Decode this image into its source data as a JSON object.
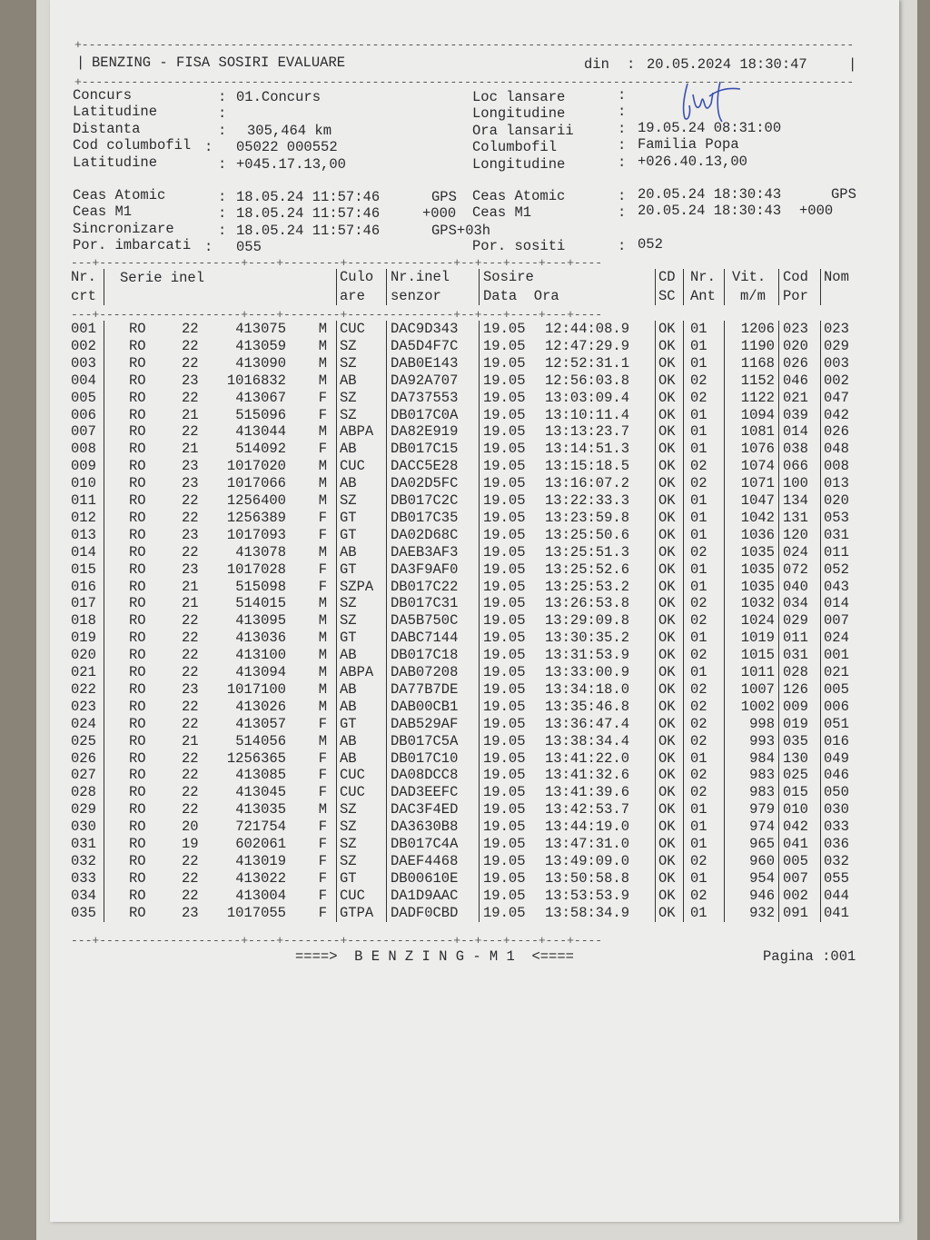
{
  "header": {
    "title": "BENZING - FISA SOSIRI EVALUARE",
    "date_label": "din",
    "date": "20.05.2024 18:30:47"
  },
  "info_left": [
    {
      "label": "Concurs",
      "value": "01.Concurs"
    },
    {
      "label": "Latitudine",
      "value": ""
    },
    {
      "label": "Distanta",
      "value": "305,464 km"
    },
    {
      "label": "Cod columbofil",
      "value": "05022 000552"
    },
    {
      "label": "Latitudine",
      "value": "+045.17.13,00"
    }
  ],
  "info_right": [
    {
      "label": "Loc lansare",
      "value": ""
    },
    {
      "label": "Longitudine",
      "value": ""
    },
    {
      "label": "Ora lansarii",
      "value": "19.05.24 08:31:00"
    },
    {
      "label": "Columbofil",
      "value": "Familia Popa"
    },
    {
      "label": "Longitudine",
      "value": "+026.40.13,00"
    }
  ],
  "clock_left": [
    {
      "label": "Ceas Atomic",
      "value": "18.05.24 11:57:46",
      "suffix": "GPS"
    },
    {
      "label": "Ceas M1",
      "value": "18.05.24 11:57:46",
      "suffix": "+000"
    },
    {
      "label": "Sincronizare",
      "value": "18.05.24 11:57:46",
      "suffix": "GPS+03h"
    },
    {
      "label": "Por. imbarcati",
      "value": "055",
      "suffix": ""
    }
  ],
  "clock_right": [
    {
      "label": "Ceas Atomic",
      "value": "20.05.24 18:30:43",
      "suffix": "GPS"
    },
    {
      "label": "Ceas M1",
      "value": "20.05.24 18:30:43",
      "suffix": "+000"
    },
    {
      "label": "Por. sositi",
      "value": "052",
      "suffix": ""
    }
  ],
  "table": {
    "headers": {
      "nr": [
        "Nr.",
        "crt"
      ],
      "serie": "Serie inel",
      "culoare": [
        "Culo",
        "are"
      ],
      "senzor": [
        "Nr.inel",
        "senzor"
      ],
      "sosire": [
        "Sosire",
        "Data  Ora"
      ],
      "cdsc": [
        "CD",
        "SC"
      ],
      "ant": [
        "Nr.",
        "Ant"
      ],
      "vit": [
        "Vit.",
        "m/m"
      ],
      "cod": [
        "Cod",
        "Por"
      ],
      "nom": [
        "Nom",
        ""
      ]
    },
    "rows": [
      [
        "001",
        "RO",
        "22",
        "413075",
        "M",
        "CUC",
        "DAC9D343",
        "19.05",
        "12:44:08.9",
        "OK",
        "01",
        "1206",
        "023",
        "023"
      ],
      [
        "002",
        "RO",
        "22",
        "413059",
        "M",
        "SZ",
        "DA5D4F7C",
        "19.05",
        "12:47:29.9",
        "OK",
        "01",
        "1190",
        "020",
        "029"
      ],
      [
        "003",
        "RO",
        "22",
        "413090",
        "M",
        "SZ",
        "DAB0E143",
        "19.05",
        "12:52:31.1",
        "OK",
        "01",
        "1168",
        "026",
        "003"
      ],
      [
        "004",
        "RO",
        "23",
        "1016832",
        "M",
        "AB",
        "DA92A707",
        "19.05",
        "12:56:03.8",
        "OK",
        "02",
        "1152",
        "046",
        "002"
      ],
      [
        "005",
        "RO",
        "22",
        "413067",
        "F",
        "SZ",
        "DA737553",
        "19.05",
        "13:03:09.4",
        "OK",
        "02",
        "1122",
        "021",
        "047"
      ],
      [
        "006",
        "RO",
        "21",
        "515096",
        "F",
        "SZ",
        "DB017C0A",
        "19.05",
        "13:10:11.4",
        "OK",
        "01",
        "1094",
        "039",
        "042"
      ],
      [
        "007",
        "RO",
        "22",
        "413044",
        "M",
        "ABPA",
        "DA82E919",
        "19.05",
        "13:13:23.7",
        "OK",
        "01",
        "1081",
        "014",
        "026"
      ],
      [
        "008",
        "RO",
        "21",
        "514092",
        "F",
        "AB",
        "DB017C15",
        "19.05",
        "13:14:51.3",
        "OK",
        "01",
        "1076",
        "038",
        "048"
      ],
      [
        "009",
        "RO",
        "23",
        "1017020",
        "M",
        "CUC",
        "DACC5E28",
        "19.05",
        "13:15:18.5",
        "OK",
        "02",
        "1074",
        "066",
        "008"
      ],
      [
        "010",
        "RO",
        "23",
        "1017066",
        "M",
        "AB",
        "DA02D5FC",
        "19.05",
        "13:16:07.2",
        "OK",
        "02",
        "1071",
        "100",
        "013"
      ],
      [
        "011",
        "RO",
        "22",
        "1256400",
        "M",
        "SZ",
        "DB017C2C",
        "19.05",
        "13:22:33.3",
        "OK",
        "01",
        "1047",
        "134",
        "020"
      ],
      [
        "012",
        "RO",
        "22",
        "1256389",
        "F",
        "GT",
        "DB017C35",
        "19.05",
        "13:23:59.8",
        "OK",
        "01",
        "1042",
        "131",
        "053"
      ],
      [
        "013",
        "RO",
        "23",
        "1017093",
        "F",
        "GT",
        "DA02D68C",
        "19.05",
        "13:25:50.6",
        "OK",
        "01",
        "1036",
        "120",
        "031"
      ],
      [
        "014",
        "RO",
        "22",
        "413078",
        "M",
        "AB",
        "DAEB3AF3",
        "19.05",
        "13:25:51.3",
        "OK",
        "02",
        "1035",
        "024",
        "011"
      ],
      [
        "015",
        "RO",
        "23",
        "1017028",
        "F",
        "GT",
        "DA3F9AF0",
        "19.05",
        "13:25:52.6",
        "OK",
        "01",
        "1035",
        "072",
        "052"
      ],
      [
        "016",
        "RO",
        "21",
        "515098",
        "F",
        "SZPA",
        "DB017C22",
        "19.05",
        "13:25:53.2",
        "OK",
        "01",
        "1035",
        "040",
        "043"
      ],
      [
        "017",
        "RO",
        "21",
        "514015",
        "M",
        "SZ",
        "DB017C31",
        "19.05",
        "13:26:53.8",
        "OK",
        "02",
        "1032",
        "034",
        "014"
      ],
      [
        "018",
        "RO",
        "22",
        "413095",
        "M",
        "SZ",
        "DA5B750C",
        "19.05",
        "13:29:09.8",
        "OK",
        "02",
        "1024",
        "029",
        "007"
      ],
      [
        "019",
        "RO",
        "22",
        "413036",
        "M",
        "GT",
        "DABC7144",
        "19.05",
        "13:30:35.2",
        "OK",
        "01",
        "1019",
        "011",
        "024"
      ],
      [
        "020",
        "RO",
        "22",
        "413100",
        "M",
        "AB",
        "DB017C18",
        "19.05",
        "13:31:53.9",
        "OK",
        "02",
        "1015",
        "031",
        "001"
      ],
      [
        "021",
        "RO",
        "22",
        "413094",
        "M",
        "ABPA",
        "DAB07208",
        "19.05",
        "13:33:00.9",
        "OK",
        "01",
        "1011",
        "028",
        "021"
      ],
      [
        "022",
        "RO",
        "23",
        "1017100",
        "M",
        "AB",
        "DA77B7DE",
        "19.05",
        "13:34:18.0",
        "OK",
        "02",
        "1007",
        "126",
        "005"
      ],
      [
        "023",
        "RO",
        "22",
        "413026",
        "M",
        "AB",
        "DAB00CB1",
        "19.05",
        "13:35:46.8",
        "OK",
        "02",
        "1002",
        "009",
        "006"
      ],
      [
        "024",
        "RO",
        "22",
        "413057",
        "F",
        "GT",
        "DAB529AF",
        "19.05",
        "13:36:47.4",
        "OK",
        "02",
        "998",
        "019",
        "051"
      ],
      [
        "025",
        "RO",
        "21",
        "514056",
        "M",
        "AB",
        "DB017C5A",
        "19.05",
        "13:38:34.4",
        "OK",
        "02",
        "993",
        "035",
        "016"
      ],
      [
        "026",
        "RO",
        "22",
        "1256365",
        "F",
        "AB",
        "DB017C10",
        "19.05",
        "13:41:22.0",
        "OK",
        "01",
        "984",
        "130",
        "049"
      ],
      [
        "027",
        "RO",
        "22",
        "413085",
        "F",
        "CUC",
        "DA08DCC8",
        "19.05",
        "13:41:32.6",
        "OK",
        "02",
        "983",
        "025",
        "046"
      ],
      [
        "028",
        "RO",
        "22",
        "413045",
        "F",
        "CUC",
        "DAD3EEFC",
        "19.05",
        "13:41:39.6",
        "OK",
        "02",
        "983",
        "015",
        "050"
      ],
      [
        "029",
        "RO",
        "22",
        "413035",
        "M",
        "SZ",
        "DAC3F4ED",
        "19.05",
        "13:42:53.7",
        "OK",
        "01",
        "979",
        "010",
        "030"
      ],
      [
        "030",
        "RO",
        "20",
        "721754",
        "F",
        "SZ",
        "DA3630B8",
        "19.05",
        "13:44:19.0",
        "OK",
        "01",
        "974",
        "042",
        "033"
      ],
      [
        "031",
        "RO",
        "19",
        "602061",
        "F",
        "SZ",
        "DB017C4A",
        "19.05",
        "13:47:31.0",
        "OK",
        "01",
        "965",
        "041",
        "036"
      ],
      [
        "032",
        "RO",
        "22",
        "413019",
        "F",
        "SZ",
        "DAEF4468",
        "19.05",
        "13:49:09.0",
        "OK",
        "02",
        "960",
        "005",
        "032"
      ],
      [
        "033",
        "RO",
        "22",
        "413022",
        "F",
        "GT",
        "DB00610E",
        "19.05",
        "13:50:58.8",
        "OK",
        "01",
        "954",
        "007",
        "055"
      ],
      [
        "034",
        "RO",
        "22",
        "413004",
        "F",
        "CUC",
        "DA1D9AAC",
        "19.05",
        "13:53:53.9",
        "OK",
        "02",
        "946",
        "002",
        "044"
      ],
      [
        "035",
        "RO",
        "23",
        "1017055",
        "F",
        "GTPA",
        "DADF0CBD",
        "19.05",
        "13:58:34.9",
        "OK",
        "01",
        "932",
        "091",
        "041"
      ]
    ]
  },
  "footer": {
    "center": "====>  B E N Z I N G - M 1  <====",
    "page": "Pagina :001"
  }
}
